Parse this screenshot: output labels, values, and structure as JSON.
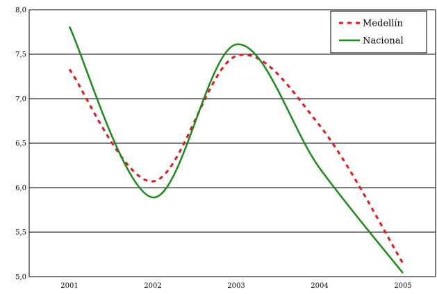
{
  "chart_data": {
    "type": "line",
    "title": "",
    "xlabel": "",
    "ylabel": "",
    "x": [
      2001,
      2002,
      2003,
      2004,
      2005
    ],
    "x_tick_labels": [
      "2001",
      "2002",
      "2003",
      "2004",
      "2005"
    ],
    "ylim": [
      5.0,
      8.0
    ],
    "y_ticks": [
      5.0,
      5.5,
      6.0,
      6.5,
      7.0,
      7.5,
      8.0
    ],
    "y_tick_labels": [
      "5,0",
      "5,5",
      "6,0",
      "6,5",
      "7,0",
      "7,5",
      "8,0"
    ],
    "grid": "horizontal",
    "smooth": true,
    "legend_position": "top-right",
    "series": [
      {
        "name": "Medellín",
        "values": [
          7.33,
          6.07,
          7.48,
          6.7,
          5.15
        ],
        "color": "#e8141c",
        "style": "dashed"
      },
      {
        "name": "Nacional",
        "values": [
          7.81,
          5.89,
          7.61,
          6.22,
          5.04
        ],
        "color": "#1a8a1a",
        "style": "solid"
      }
    ]
  }
}
